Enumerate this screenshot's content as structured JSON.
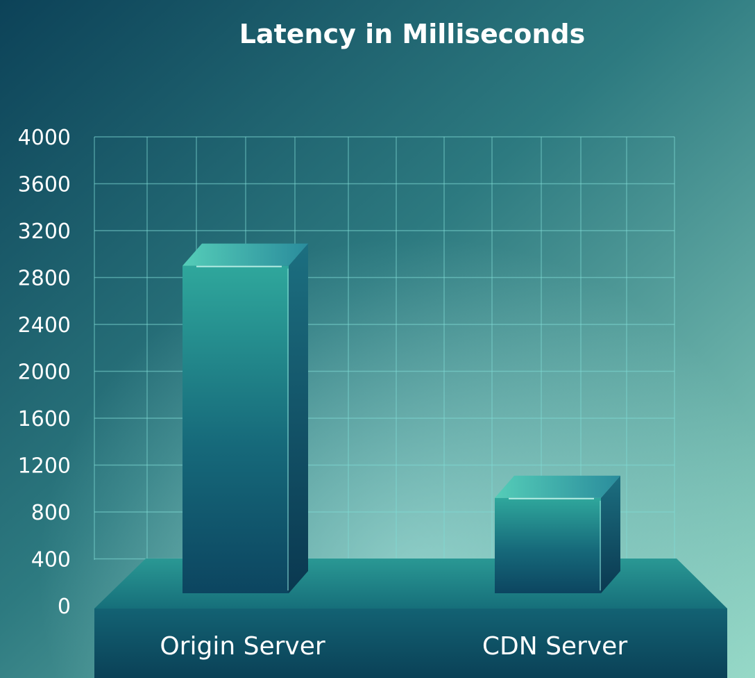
{
  "chart_data": {
    "type": "bar",
    "title": "Latency in Milliseconds",
    "xlabel": "",
    "ylabel": "",
    "categories": [
      "Origin Server",
      "CDN Server"
    ],
    "values": [
      2900,
      920
    ],
    "ylim": [
      0,
      4000
    ],
    "yticks": [
      "4000",
      "3600",
      "3200",
      "2800",
      "2400",
      "2000",
      "1600",
      "1200",
      "800",
      "400",
      "0"
    ],
    "grid": true,
    "legend": "none",
    "style": "3d"
  },
  "colors": {
    "background_dark": "#0f4a5e",
    "background_light": "#8ed3c3",
    "grid": "#7fd9d6",
    "bar_front_top": "#2a9c95",
    "bar_front_bottom": "#0e4a62",
    "bar_top": "#4fc7b4",
    "bar_side": "#0b3f55",
    "base_top": "#1f8f90",
    "base_front": "#0d5567",
    "text": "#ffffff"
  }
}
